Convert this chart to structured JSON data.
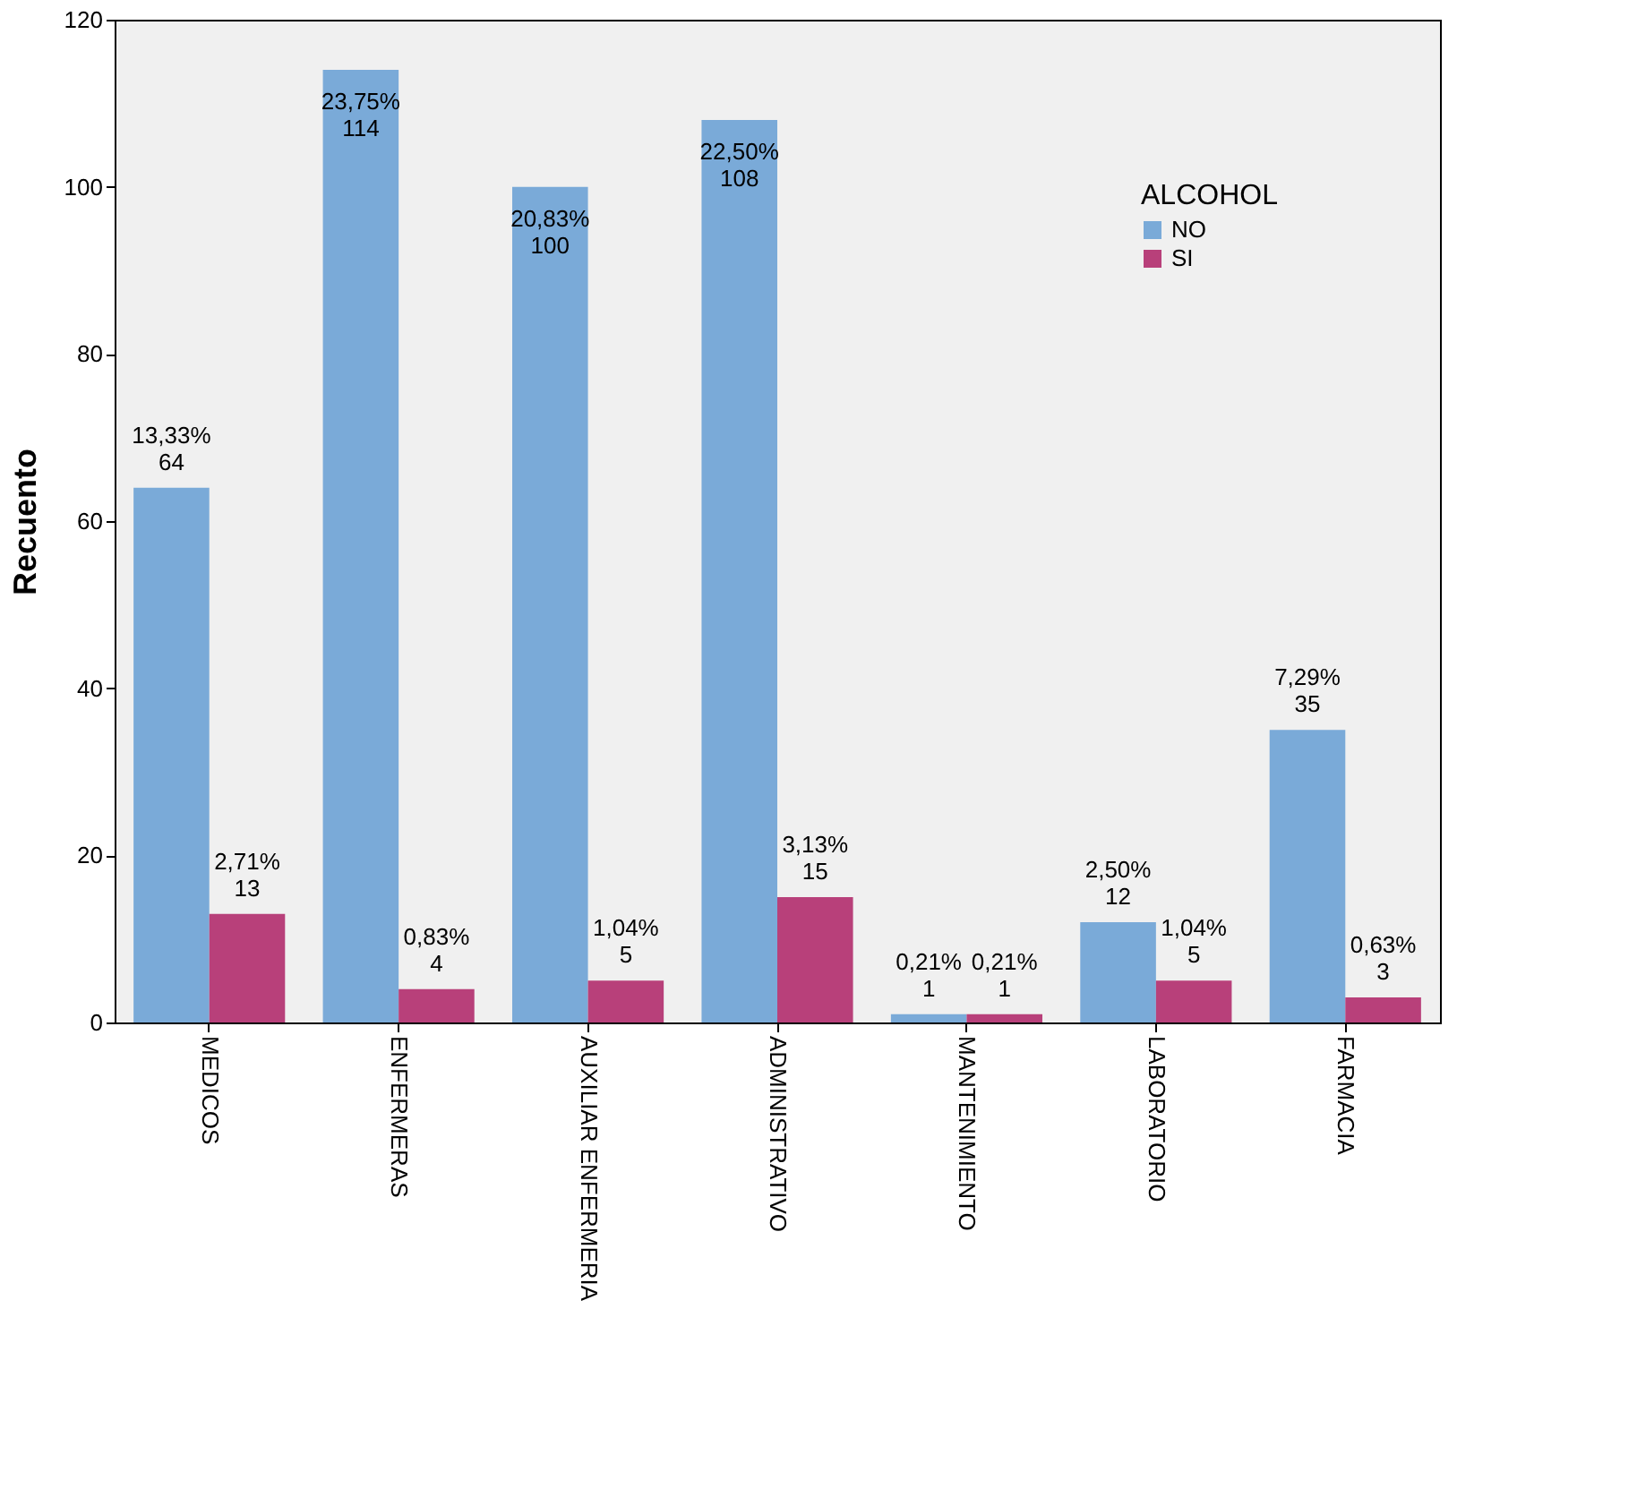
{
  "chart_data": {
    "type": "bar",
    "ylabel": "Recuento",
    "legend_title": "ALCOHOL",
    "legend": "top right",
    "categories": [
      "MEDICOS",
      "ENFERMERAS",
      "AUXILIAR ENFERMERIA",
      "ADMINISTRATIVO",
      "MANTENIMIENTO",
      "LABORATORIO",
      "FARMACIA"
    ],
    "series": [
      {
        "name": "NO",
        "color": "#7aaad8",
        "values": [
          64,
          114,
          100,
          108,
          1,
          12,
          35
        ],
        "value_labels": [
          "13,33%\n64",
          "23,75%\n114",
          "20,83%\n100",
          "22,50%\n108",
          "0,21%\n1",
          "2,50%\n12",
          "7,29%\n35"
        ]
      },
      {
        "name": "SI",
        "color": "#b8407a",
        "values": [
          13,
          4,
          5,
          15,
          1,
          5,
          3
        ],
        "value_labels": [
          "2,71%\n13",
          "0,83%\n4",
          "1,04%\n5",
          "3,13%\n15",
          "0,21%\n1",
          "1,04%\n5",
          "0,63%\n3"
        ]
      }
    ],
    "ylim": [
      0,
      120
    ],
    "yticks": [
      0,
      20,
      40,
      60,
      80,
      100,
      120
    ],
    "grid": false
  }
}
